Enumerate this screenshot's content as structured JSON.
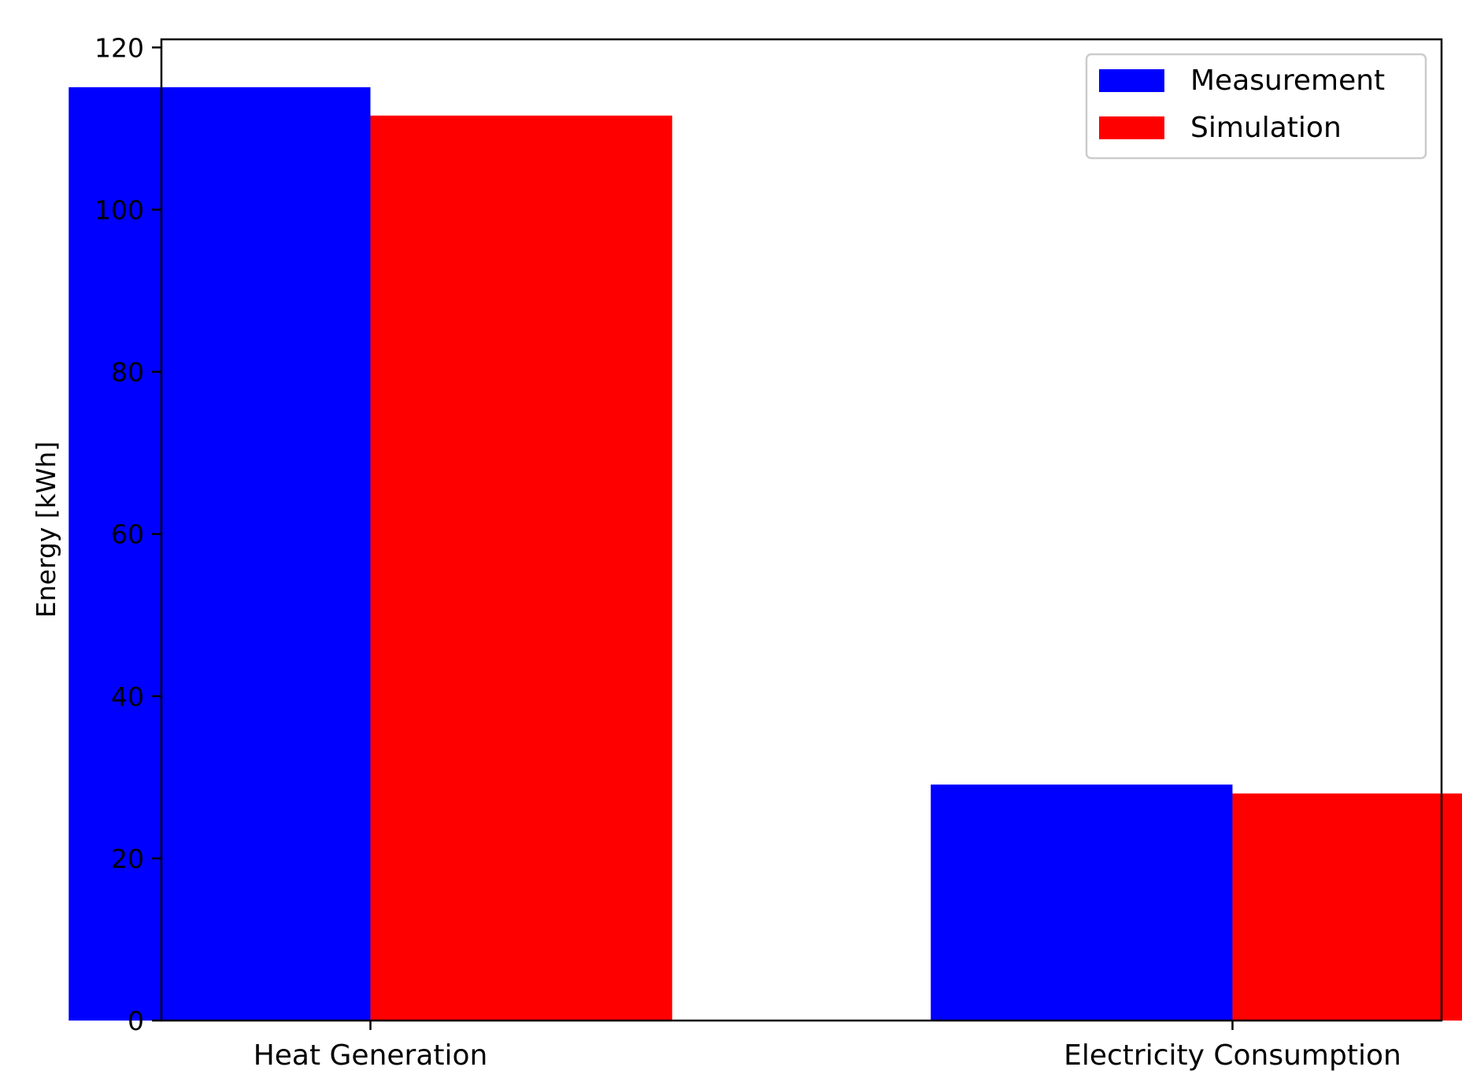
{
  "chart_data": {
    "type": "bar",
    "title": "",
    "xlabel": "",
    "ylabel": "Energy [kWh]",
    "categories": [
      "Heat Generation",
      "Electricity Consumption"
    ],
    "series": [
      {
        "name": "Measurement",
        "values": [
          115.1,
          29.1
        ],
        "color": "#0000ff"
      },
      {
        "name": "Simulation",
        "values": [
          111.6,
          28.0
        ],
        "color": "#ff0000"
      }
    ],
    "ylim": [
      0,
      121
    ],
    "yticks": [
      0,
      20,
      40,
      60,
      80,
      100,
      120
    ],
    "grid": false,
    "legend_position": "top-right"
  }
}
